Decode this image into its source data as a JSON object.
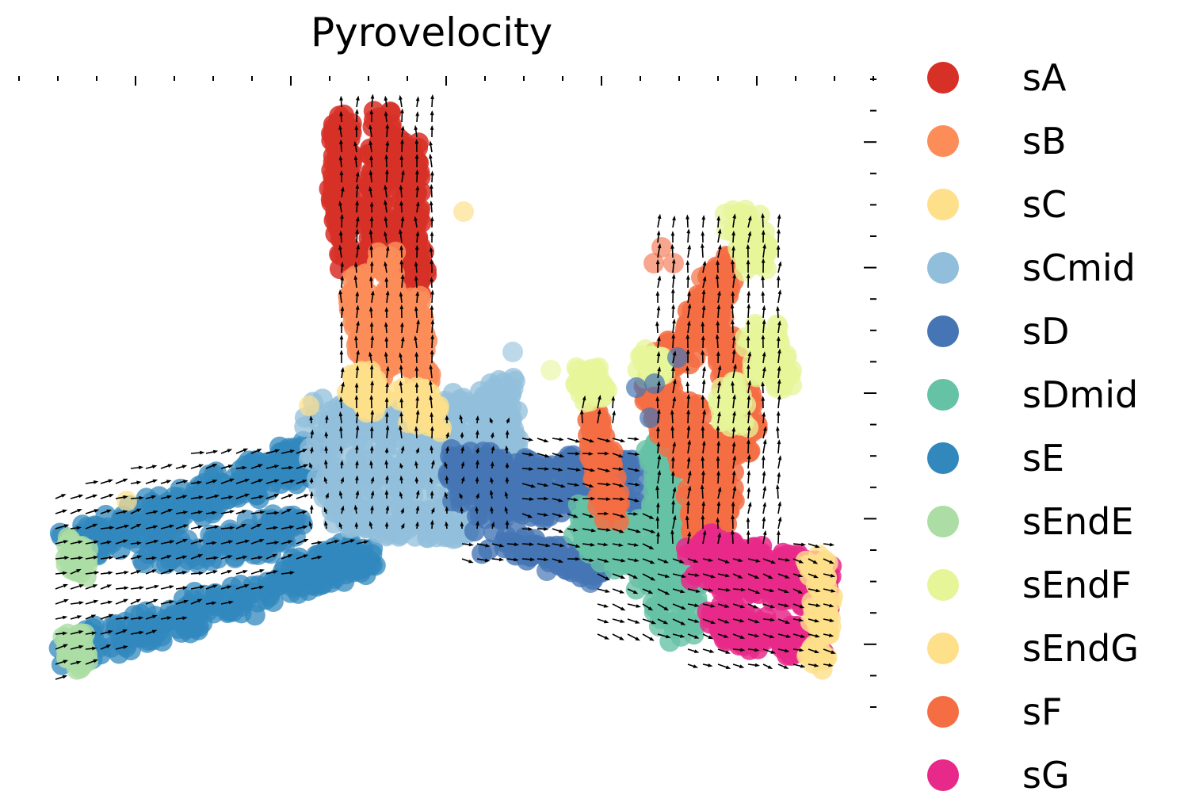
{
  "chart_data": {
    "type": "scatter",
    "title": "Pyrovelocity",
    "xlabel": "",
    "ylabel": "",
    "grid": false,
    "legend_position": "right",
    "tick_labels_visible": false,
    "has_velocity_arrows": true,
    "series": [
      {
        "name": "sA",
        "color": "#d73027"
      },
      {
        "name": "sB",
        "color": "#fc8d59"
      },
      {
        "name": "sC",
        "color": "#fee08b"
      },
      {
        "name": "sCmid",
        "color": "#91bfdb"
      },
      {
        "name": "sD",
        "color": "#4575b4"
      },
      {
        "name": "sDmid",
        "color": "#66c2a5"
      },
      {
        "name": "sE",
        "color": "#3288bd"
      },
      {
        "name": "sEndE",
        "color": "#abdda4"
      },
      {
        "name": "sEndF",
        "color": "#e6f598"
      },
      {
        "name": "sEndG",
        "color": "#fee08b"
      },
      {
        "name": "sF",
        "color": "#f46d43"
      },
      {
        "name": "sG",
        "color": "#e7298a"
      }
    ]
  }
}
